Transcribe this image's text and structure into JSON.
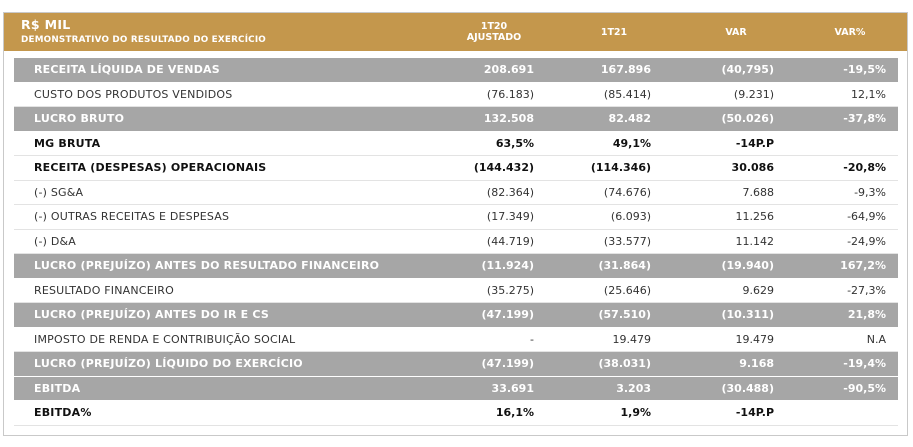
{
  "header": {
    "title": "R$ MIL",
    "subtitle": "DEMONSTRATIVO DO RESULTADO DO EXERCÍCIO",
    "columns": [
      "1T20\nAJUSTADO",
      "1T21",
      "VAR",
      "VAR%"
    ]
  },
  "rows": [
    {
      "label": "RECEITA LÍQUIDA DE VENDAS",
      "style": "gray",
      "values": [
        "208.691",
        "167.896",
        "(40,795)",
        "-19,5%"
      ]
    },
    {
      "label": "CUSTO DOS PRODUTOS VENDIDOS",
      "style": "normal",
      "values": [
        "(76.183)",
        "(85.414)",
        "(9.231)",
        "12,1%"
      ]
    },
    {
      "label": "LUCRO BRUTO",
      "style": "gray",
      "values": [
        "132.508",
        "82.482",
        "(50.026)",
        "-37,8%"
      ]
    },
    {
      "label": "MG BRUTA",
      "style": "bold",
      "values": [
        "63,5%",
        "49,1%",
        "-14P.P",
        ""
      ]
    },
    {
      "label": "RECEITA (DESPESAS) OPERACIONAIS",
      "style": "bold",
      "values": [
        "(144.432)",
        "(114.346)",
        "30.086",
        "-20,8%"
      ]
    },
    {
      "label": "(-) SG&A",
      "style": "normal",
      "values": [
        "(82.364)",
        "(74.676)",
        "7.688",
        "-9,3%"
      ]
    },
    {
      "label": "(-) OUTRAS RECEITAS E DESPESAS",
      "style": "normal",
      "values": [
        "(17.349)",
        "(6.093)",
        "11.256",
        "-64,9%"
      ]
    },
    {
      "label": "(-) D&A",
      "style": "normal",
      "values": [
        "(44.719)",
        "(33.577)",
        "11.142",
        "-24,9%"
      ]
    },
    {
      "label": "LUCRO (PREJUÍZO) ANTES DO RESULTADO FINANCEIRO",
      "style": "gray",
      "values": [
        "(11.924)",
        "(31.864)",
        "(19.940)",
        "167,2%"
      ]
    },
    {
      "label": "RESULTADO FINANCEIRO",
      "style": "normal",
      "values": [
        "(35.275)",
        "(25.646)",
        "9.629",
        "-27,3%"
      ]
    },
    {
      "label": "LUCRO (PREJUÍZO) ANTES DO IR E CS",
      "style": "gray",
      "values": [
        "(47.199)",
        "(57.510)",
        "(10.311)",
        "21,8%"
      ]
    },
    {
      "label": "IMPOSTO DE RENDA E CONTRIBUIÇÃO SOCIAL",
      "style": "normal",
      "values": [
        "-",
        "19.479",
        "19.479",
        "N.A"
      ]
    },
    {
      "label": "LUCRO (PREJUÍZO) LÍQUIDO DO EXERCÍCIO",
      "style": "gray",
      "values": [
        "(47.199)",
        "(38.031)",
        "9.168",
        "-19,4%"
      ]
    },
    {
      "label": "EBITDA",
      "style": "gray",
      "values": [
        "33.691",
        "3.203",
        "(30.488)",
        "-90,5%"
      ]
    },
    {
      "label": "EBITDA%",
      "style": "bold",
      "values": [
        "16,1%",
        "1,9%",
        "-14P.P",
        ""
      ]
    }
  ]
}
